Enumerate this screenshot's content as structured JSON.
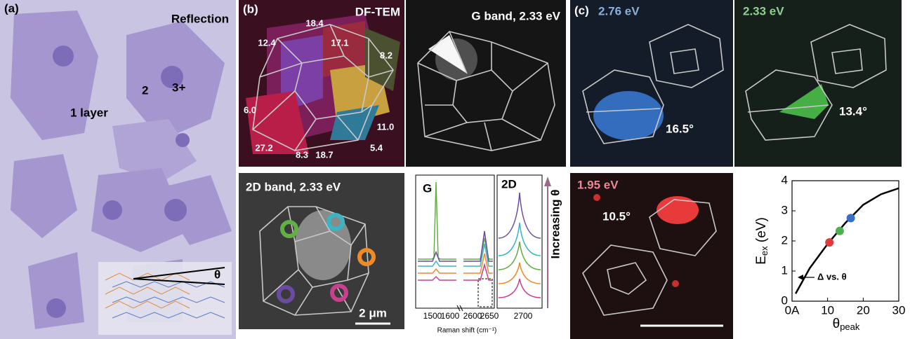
{
  "panel_a": {
    "label": "(a)",
    "title": "Reflection",
    "annotations": [
      "1 layer",
      "2",
      "3+"
    ],
    "angle": "θ"
  },
  "panel_b": {
    "label": "(b)",
    "df_tem": {
      "title": "DF-TEM",
      "angles": [
        "18.4",
        "12.4",
        "17.1",
        "8.2",
        "6.0",
        "11.0",
        "27.2",
        "8.3",
        "18.7",
        "5.4"
      ]
    },
    "g_band": {
      "title": "G band, 2.33 eV"
    },
    "band_2d": {
      "title": "2D band, 2.33 eV",
      "scale_bar": "2 μm"
    },
    "raman": {
      "g_label": "G",
      "label_2d": "2D",
      "xticks": [
        "1500",
        "1600",
        "2600",
        "2650",
        "2700"
      ],
      "xlabel": "Raman shift (cm⁻¹)",
      "arrow_label": "Increasing θ"
    }
  },
  "panel_c": {
    "label": "(c)",
    "images": [
      {
        "energy": "2.76 eV",
        "angle": "16.5°"
      },
      {
        "energy": "2.33 eV",
        "angle": "13.4°"
      },
      {
        "energy": "1.95 eV",
        "angle": "10.5°"
      }
    ]
  },
  "chart_data": {
    "type": "line",
    "xlabel": "θ",
    "xlabel_sub": "peak",
    "ylabel": "E",
    "ylabel_sub": "ex",
    "ylabel_unit": " (eV)",
    "x": [
      1,
      5,
      10,
      15,
      20,
      25,
      30
    ],
    "series": [
      {
        "values": [
          0.25,
          1.1,
          1.9,
          2.6,
          3.2,
          3.55,
          3.75
        ],
        "color": "#000000"
      }
    ],
    "points": {
      "x": [
        10.5,
        13.4,
        16.5
      ],
      "values": [
        1.95,
        2.33,
        2.76
      ],
      "colors": [
        "#e23a3a",
        "#4caf50",
        "#3a6fc4"
      ]
    },
    "annotation": "Δ vs. θ",
    "xlim": [
      0,
      30
    ],
    "xticks": [
      {
        "value": 0,
        "label": "0A"
      },
      10,
      20,
      30
    ],
    "ylim": [
      0,
      4
    ],
    "yticks": [
      0,
      1,
      2,
      3,
      4
    ]
  }
}
